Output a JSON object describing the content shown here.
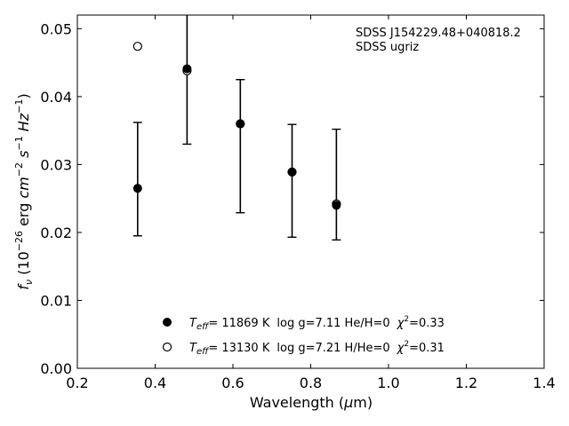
{
  "chart_data": {
    "type": "scatter",
    "title": "",
    "xlabel": "Wavelength (μm)",
    "ylabel": "fν (10⁻²⁶ erg cm⁻² s⁻¹ Hz⁻¹)",
    "xlim": [
      0.2,
      1.4
    ],
    "ylim": [
      0.0,
      0.052
    ],
    "xticks": [
      "0.2",
      "0.4",
      "0.6",
      "0.8",
      "1.0",
      "1.2",
      "1.4"
    ],
    "yticks": [
      "0.00",
      "0.01",
      "0.02",
      "0.03",
      "0.04",
      "0.05"
    ],
    "annotations": [
      "SDSS J154229.48+040818.2",
      "SDSS ugriz"
    ],
    "observed": {
      "x": [
        0.355,
        0.482,
        0.619,
        0.752,
        0.866
      ],
      "y": [
        0.0265,
        0.0441,
        0.036,
        0.0289,
        0.024
      ],
      "err_low": [
        0.0195,
        0.033,
        0.0229,
        0.0193,
        0.0189
      ],
      "err_high": [
        0.0362,
        0.0525,
        0.0425,
        0.0359,
        0.0352
      ]
    },
    "series": [
      {
        "marker": "filled-circle",
        "x": [
          0.355,
          0.482,
          0.619,
          0.752,
          0.866
        ],
        "y": [
          0.0265,
          0.0441,
          0.036,
          0.0289,
          0.024
        ]
      },
      {
        "marker": "open-circle",
        "x": [
          0.355,
          0.482,
          0.619,
          0.752,
          0.866
        ],
        "y": [
          0.0474,
          0.0438,
          0.036,
          0.0289,
          0.0242
        ]
      }
    ],
    "legend": [
      {
        "marker": "filled",
        "teff_value": "= 11869 K",
        "params": "log g=7.11  He/H=0",
        "chi": "=0.33"
      },
      {
        "marker": "open",
        "teff_value": "= 13130 K",
        "params": "log g=7.21  H/He=0",
        "chi": "=0.31"
      }
    ],
    "legend_placement": "bottom-center",
    "grid": false
  }
}
